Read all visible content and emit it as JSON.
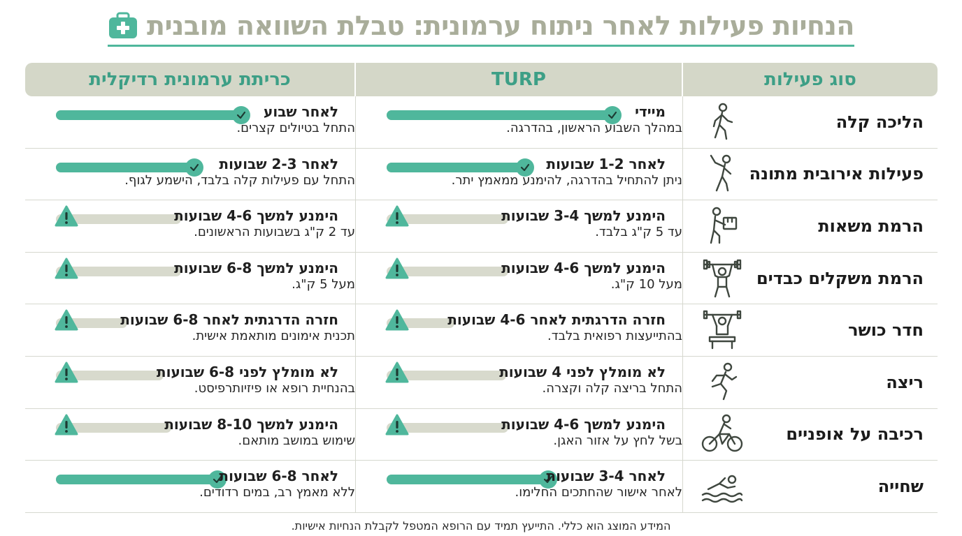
{
  "title": "הנחיות פעילות לאחר ניתוח ערמונית: טבלת השוואה מובנית",
  "colors": {
    "accent": "#4fb79c",
    "header_bg": "#d4d7c8",
    "track": "#d8dacd",
    "title_text": "#a9ad9a"
  },
  "columns": {
    "activity": "סוג פעילות",
    "turp": "TURP",
    "radical": "כריתת ערמונית רדיקלית"
  },
  "rows": [
    {
      "activity": "הליכה קלה",
      "icon": "walking-person-icon",
      "turp": {
        "title": "מיידי",
        "sub": "במהלך השבוע הראשון, בהדרגה.",
        "status": "ok",
        "level": 0.8
      },
      "radical": {
        "title": "לאחר שבוע",
        "sub": "התחל בטיולים קצרים.",
        "status": "ok",
        "level": 0.66
      }
    },
    {
      "activity": "פעילות אירובית מתונה",
      "icon": "stretching-person-icon",
      "turp": {
        "title": "לאחר 1-2 שבועות",
        "sub": "ניתן להתחיל בהדרגה, להימנע ממאמץ יתר.",
        "status": "ok",
        "level": 0.5
      },
      "radical": {
        "title": "לאחר 2-3 שבועות",
        "sub": "התחל עם פעילות קלה בלבד, הישמע לגוף.",
        "status": "ok",
        "level": 0.5
      }
    },
    {
      "activity": "הרמת משאות",
      "icon": "lifting-box-icon",
      "turp": {
        "title": "הימנע למשך 3-4 שבועות",
        "sub": "עד 5 ק\"ג בלבד.",
        "status": "warn",
        "level": 0
      },
      "radical": {
        "title": "הימנע למשך 4-6 שבועות",
        "sub": "עד 2 ק\"ג בשבועות הראשונים.",
        "status": "warn",
        "level": 0
      }
    },
    {
      "activity": "הרמת משקלים כבדים",
      "icon": "barbell-lifter-icon",
      "turp": {
        "title": "הימנע למשך 4-6 שבועות",
        "sub": "מעל 10 ק\"ג.",
        "status": "warn",
        "level": 0
      },
      "radical": {
        "title": "הימנע למשך 6-8 שבועות",
        "sub": "מעל 5 ק\"ג.",
        "status": "warn",
        "level": 0
      }
    },
    {
      "activity": "חדר כושר",
      "icon": "gym-bench-icon",
      "turp": {
        "title": "חזרה הדרגתית לאחר 4-6 שבועות",
        "sub": "בהתייעצות רפואית בלבד.",
        "status": "warn",
        "level": 0
      },
      "radical": {
        "title": "חזרה הדרגתית לאחר 6-8 שבועות",
        "sub": "תכנית אימונים מותאמת אישית.",
        "status": "warn",
        "level": 0
      }
    },
    {
      "activity": "ריצה",
      "icon": "running-person-icon",
      "turp": {
        "title": "לא מומלץ לפני 4 שבועות",
        "sub": "התחל בריצה קלה וקצרה.",
        "status": "warn",
        "level": 0
      },
      "radical": {
        "title": "לא מומלץ לפני 6-8 שבועות",
        "sub": "בהנחיית רופא או פיזיותרפיסט.",
        "status": "warn",
        "level": 0
      }
    },
    {
      "activity": "רכיבה על אופניים",
      "icon": "cyclist-icon",
      "turp": {
        "title": "הימנע למשך 4-6 שבועות",
        "sub": "בשל לחץ על אזור האגן.",
        "status": "warn",
        "level": 0
      },
      "radical": {
        "title": "הימנע למשך 8-10 שבועות",
        "sub": "שימוש במושב מותאם.",
        "status": "warn",
        "level": 0
      }
    },
    {
      "activity": "שחייה",
      "icon": "swimmer-icon",
      "turp": {
        "title": "לאחר 3-4 שבועות",
        "sub": "לאחר אישור שהחתכים החלימו.",
        "status": "ok",
        "level": 0.58
      },
      "radical": {
        "title": "לאחר 6-8 שבועות",
        "sub": "ללא מאמץ רב, במים רדודים.",
        "status": "ok",
        "level": 0.58
      }
    }
  ],
  "footer": "המידע המוצג הוא כללי. התייעץ תמיד עם הרופא המטפל לקבלת הנחיות אישיות."
}
